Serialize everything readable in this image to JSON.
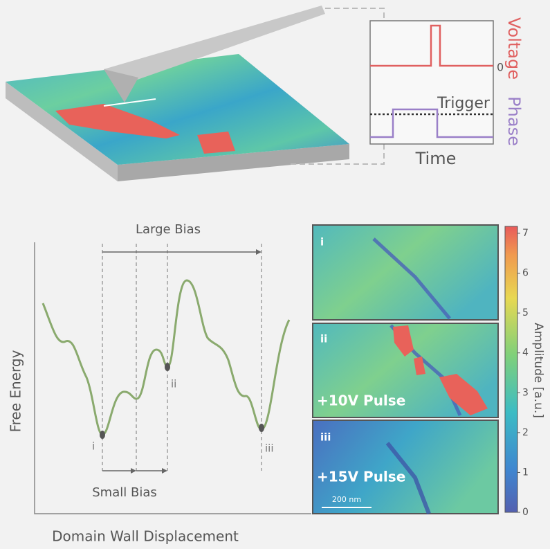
{
  "schematic": {
    "voltage_label": "Voltage",
    "phase_label": "Phase",
    "zero_label": "0",
    "trigger_label": "Trigger",
    "time_label": "Time"
  },
  "energy_plot": {
    "large_bias": "Large Bias",
    "small_bias": "Small Bias",
    "y_label": "Free Energy",
    "x_label": "Domain Wall Displacement",
    "minima": [
      "i",
      "ii",
      "iii"
    ]
  },
  "panels": [
    {
      "label": "i"
    },
    {
      "label": "ii",
      "annotation": "+10V Pulse"
    },
    {
      "label": "iii",
      "annotation": "+15V Pulse",
      "scale_bar": "200 nm"
    }
  ],
  "colorbar": {
    "label": "Amplitude [a.u.]",
    "ticks": [
      0,
      1,
      2,
      3,
      4,
      5,
      6,
      7
    ]
  }
}
